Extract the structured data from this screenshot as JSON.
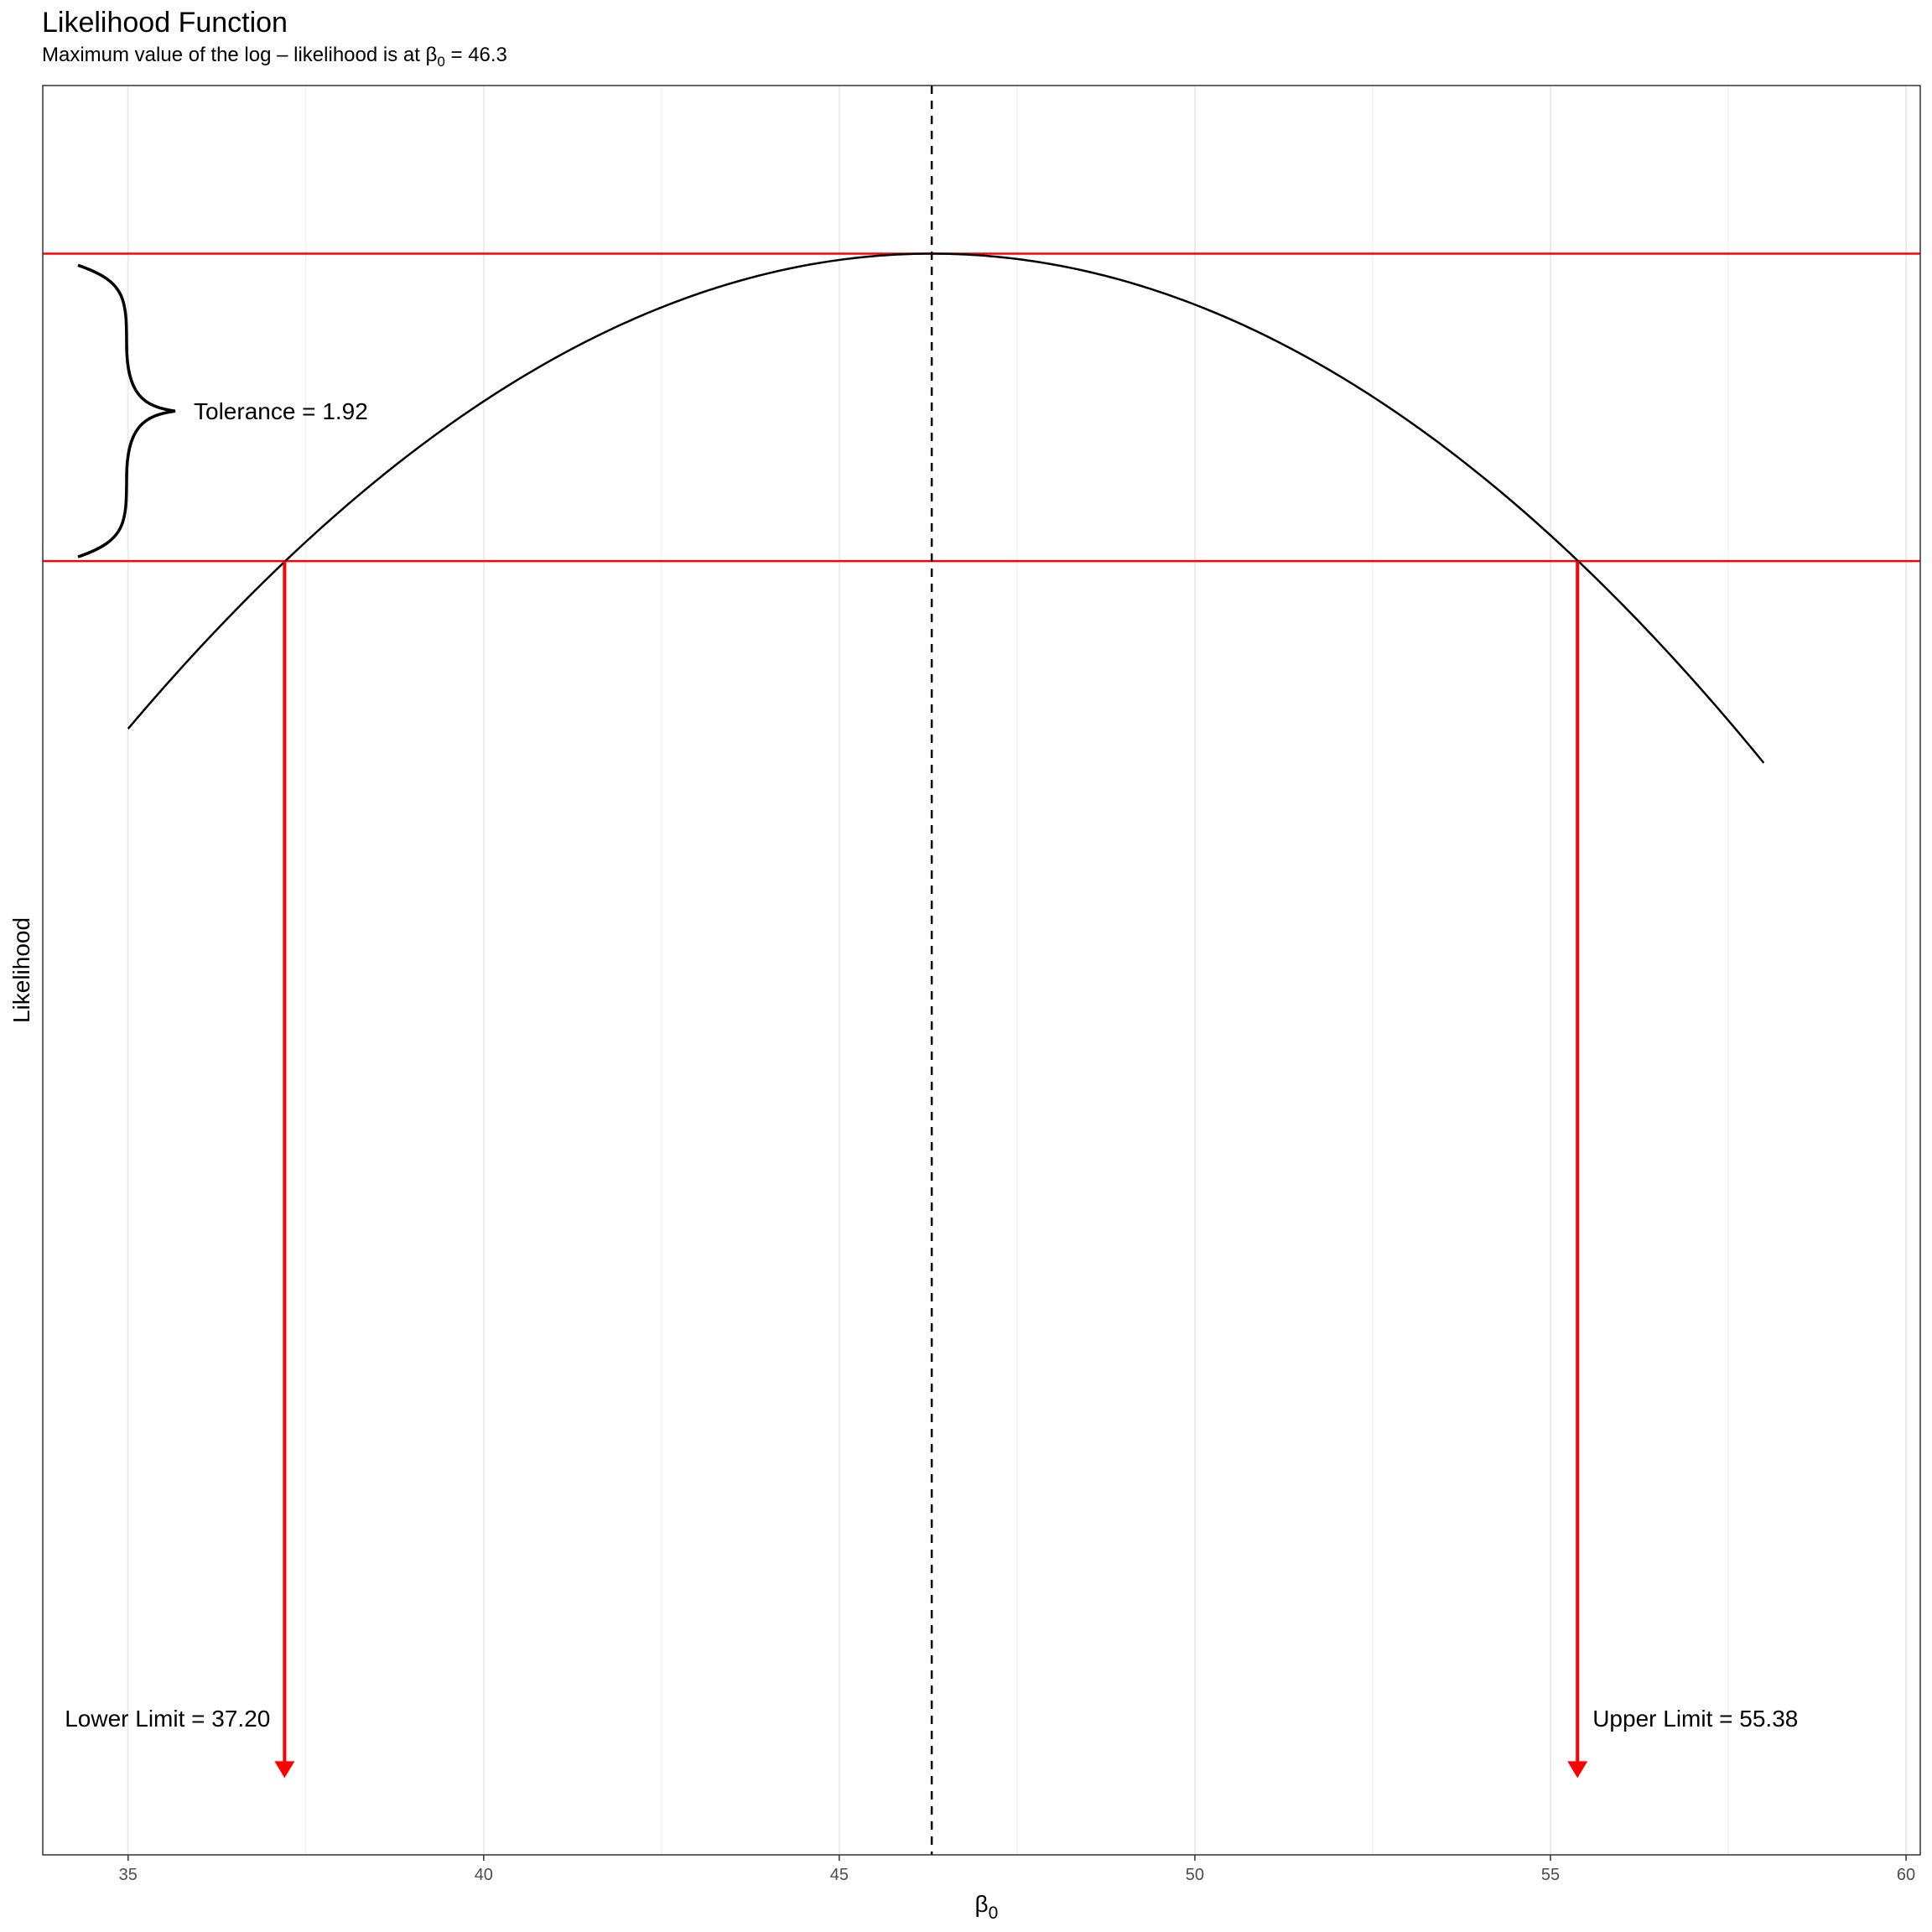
{
  "chart_data": {
    "type": "line",
    "title": "Likelihood Function",
    "subtitle": {
      "prefix": "Maximum value of the log – likelihood is at β",
      "subscript": "0",
      "suffix": " = 46.3"
    },
    "xlabel": {
      "symbol": "β",
      "subscript": "0"
    },
    "ylabel": "Likelihood",
    "xlim": [
      33.8,
      60.2
    ],
    "ylim": [
      -10.0,
      1.05
    ],
    "x_ticks": [
      35,
      40,
      45,
      50,
      55,
      60
    ],
    "x_tick_labels": [
      "35",
      "40",
      "45",
      "50",
      "55",
      "60"
    ],
    "grid": {
      "vertical_major": true,
      "vertical_minor": true,
      "horizontal": false
    },
    "y_ticks_shown": false,
    "series": [
      {
        "type": "curve",
        "x_range": [
          35,
          58
        ],
        "mle": 46.3,
        "max_value": 0,
        "tolerance": 1.92,
        "lower_limit": 37.2,
        "upper_limit": 55.38
      }
    ],
    "annotations": {
      "mle_line": {
        "x": 46.3,
        "style": "dashed",
        "color": "#000000"
      },
      "max_line": {
        "y": 0,
        "color": "#ff0000"
      },
      "threshold_line": {
        "y": -1.92,
        "color": "#ff0000"
      },
      "tolerance_label": "Tolerance = 1.92",
      "lower_label": "Lower Limit = 37.20",
      "upper_label": "Upper Limit = 55.38",
      "arrow_color": "#ff0000"
    }
  }
}
